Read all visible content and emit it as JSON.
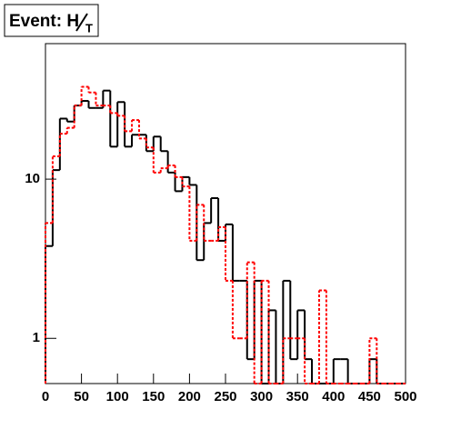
{
  "chart_data": {
    "type": "histogram",
    "title": "Event: H",
    "title_subscript": "T",
    "bins": [
      0,
      10,
      20,
      30,
      40,
      50,
      60,
      70,
      80,
      90,
      100,
      110,
      120,
      130,
      140,
      150,
      160,
      170,
      180,
      190,
      200,
      210,
      220,
      230,
      240,
      250,
      260,
      270,
      280,
      290,
      300,
      310,
      320,
      330,
      340,
      350,
      360,
      370,
      380,
      390,
      400,
      410,
      420,
      430,
      440,
      450,
      460,
      470,
      480,
      490,
      500
    ],
    "series": [
      {
        "color": "#000000",
        "style": "solid",
        "values": [
          3.8,
          11.4,
          24,
          23,
          29,
          31,
          28,
          28,
          36,
          16,
          30.5,
          16,
          19,
          19,
          15,
          18.5,
          15,
          11,
          8.4,
          10.3,
          9.2,
          3.1,
          5.3,
          7.6,
          4.1,
          5.2,
          2.3,
          2.3,
          0.74,
          2.3,
          0,
          1.5,
          0,
          2.3,
          0.74,
          1.5,
          0.74,
          0,
          0,
          0,
          0.74,
          0.74,
          0,
          0,
          0,
          0.74,
          0,
          0,
          0,
          0
        ]
      },
      {
        "color": "#ff0000",
        "style": "dotted",
        "values": [
          5.3,
          13.9,
          19.3,
          21,
          29,
          38,
          35,
          29,
          29,
          26,
          25,
          20,
          23.5,
          18,
          15.8,
          11,
          11.7,
          12.2,
          10.3,
          9,
          4.1,
          6.9,
          4.1,
          4.1,
          5,
          2.3,
          1,
          1,
          3,
          0,
          2.3,
          0,
          0,
          1,
          1,
          1,
          0,
          0,
          2,
          0,
          0,
          0,
          0,
          0,
          0,
          1,
          0,
          0,
          0,
          0
        ]
      }
    ],
    "xlim": [
      0,
      500
    ],
    "xticks": [
      0,
      50,
      100,
      150,
      200,
      250,
      300,
      350,
      400,
      450,
      500
    ],
    "ylim": [
      0.52,
      71
    ],
    "yticks": [
      1,
      10
    ],
    "log_y": true
  }
}
